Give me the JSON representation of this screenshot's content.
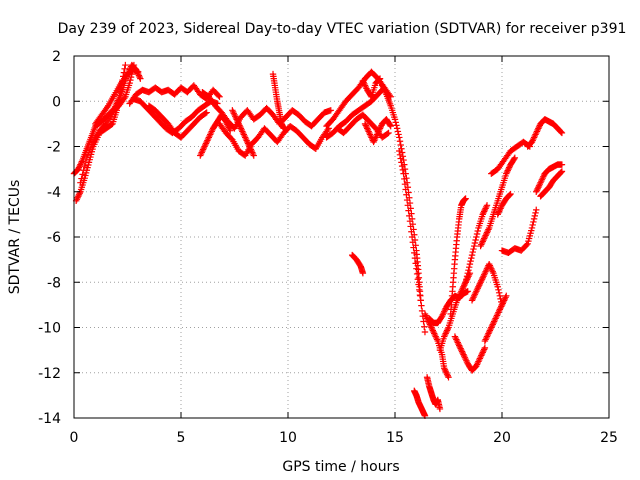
{
  "chart_data": {
    "type": "scatter",
    "title": "Day 239 of 2023, Sidereal Day-to-day VTEC variation (SDTVAR) for receiver p391",
    "xlabel": "GPS time / hours",
    "ylabel": "SDTVAR / TECUs",
    "xlim": [
      0,
      25
    ],
    "ylim": [
      -14,
      2
    ],
    "xticks": [
      0,
      5,
      10,
      15,
      20,
      25
    ],
    "yticks": [
      2,
      0,
      -2,
      -4,
      -6,
      -8,
      -10,
      -12,
      -14
    ],
    "grid": true,
    "marker": "plus",
    "color": "#ff0000",
    "series": [
      {
        "x": [
          0.0,
          0.2,
          0.4,
          0.6,
          0.8,
          1.0,
          1.3,
          1.6,
          1.9,
          2.1,
          2.3,
          2.5,
          2.7,
          2.9,
          3.1
        ],
        "y": [
          -3.2,
          -3.0,
          -2.6,
          -2.1,
          -1.6,
          -1.1,
          -0.9,
          -0.6,
          -0.3,
          0.1,
          0.6,
          1.2,
          1.6,
          1.4,
          1.0
        ]
      },
      {
        "x": [
          0.1,
          0.3,
          0.5,
          0.7,
          0.9,
          1.2,
          1.5,
          1.8,
          2.0,
          2.2,
          2.4
        ],
        "y": [
          -4.4,
          -4.0,
          -3.4,
          -2.7,
          -2.0,
          -1.4,
          -1.2,
          -1.0,
          -0.4,
          0.6,
          1.6
        ]
      },
      {
        "x": [
          0.3,
          0.6,
          0.9,
          1.2,
          1.5,
          1.8,
          2.1,
          2.4,
          2.6,
          2.8
        ],
        "y": [
          -3.6,
          -2.5,
          -1.8,
          -1.3,
          -1.0,
          -0.5,
          -0.2,
          0.2,
          0.8,
          1.6
        ]
      },
      {
        "x": [
          1.0,
          1.3,
          1.6,
          1.9,
          2.2,
          2.5,
          2.8,
          3.0
        ],
        "y": [
          -1.0,
          -0.6,
          -0.2,
          0.3,
          0.8,
          1.2,
          1.4,
          1.3
        ]
      },
      {
        "x": [
          2.6,
          2.9,
          3.2,
          3.5,
          3.8,
          4.1,
          4.4,
          4.7,
          5.0,
          5.3,
          5.6,
          5.9,
          6.2,
          6.5,
          6.8
        ],
        "y": [
          -0.1,
          0.3,
          0.5,
          0.4,
          0.6,
          0.4,
          0.5,
          0.3,
          0.6,
          0.4,
          0.7,
          0.3,
          0.1,
          0.5,
          0.2
        ]
      },
      {
        "x": [
          2.8,
          3.1,
          3.4,
          3.7,
          4.0,
          4.3,
          4.6,
          4.9,
          5.2,
          5.5,
          5.8,
          6.1,
          6.4,
          6.7
        ],
        "y": [
          0.1,
          0.0,
          -0.3,
          -0.6,
          -0.9,
          -1.2,
          -1.4,
          -1.2,
          -0.9,
          -0.7,
          -0.4,
          -0.2,
          0.0,
          -0.1
        ]
      },
      {
        "x": [
          3.5,
          3.8,
          4.1,
          4.4,
          4.7,
          5.0,
          5.3,
          5.6,
          5.9,
          6.2
        ],
        "y": [
          -0.2,
          -0.4,
          -0.7,
          -1.0,
          -1.4,
          -1.6,
          -1.3,
          -1.0,
          -0.7,
          -0.5
        ]
      },
      {
        "x": [
          5.9,
          6.1,
          6.3,
          6.5,
          6.7,
          6.9,
          7.1,
          7.3
        ],
        "y": [
          -2.4,
          -2.0,
          -1.6,
          -1.2,
          -0.9,
          -0.6,
          -0.9,
          -1.3
        ]
      },
      {
        "x": [
          6.0,
          6.3,
          6.6,
          6.9,
          7.2,
          7.5,
          7.8,
          8.1,
          8.4,
          8.7,
          9.0,
          9.3,
          9.6,
          9.9,
          10.2,
          10.5,
          10.8,
          11.1,
          11.4,
          11.7,
          12.0
        ],
        "y": [
          0.4,
          0.2,
          -0.2,
          -0.5,
          -0.9,
          -1.2,
          -0.7,
          -0.4,
          -0.8,
          -0.6,
          -0.3,
          -0.6,
          -1.0,
          -0.7,
          -0.4,
          -0.6,
          -0.9,
          -1.1,
          -0.8,
          -0.5,
          -0.4
        ]
      },
      {
        "x": [
          6.8,
          7.1,
          7.4,
          7.7,
          8.0,
          8.3,
          8.6,
          8.9,
          9.2,
          9.5,
          9.8,
          10.1,
          10.4,
          10.7,
          11.0,
          11.3,
          11.6,
          11.9
        ],
        "y": [
          -1.0,
          -1.4,
          -1.7,
          -2.2,
          -2.4,
          -1.9,
          -1.6,
          -1.2,
          -1.5,
          -1.8,
          -1.4,
          -1.1,
          -1.3,
          -1.6,
          -1.9,
          -2.1,
          -1.6,
          -1.2
        ]
      },
      {
        "x": [
          7.4,
          7.6,
          7.8,
          8.0,
          8.2,
          8.4
        ],
        "y": [
          -0.4,
          -0.8,
          -1.2,
          -1.6,
          -2.0,
          -2.4
        ]
      },
      {
        "x": [
          9.3,
          9.4,
          9.5,
          9.6,
          9.7,
          9.8
        ],
        "y": [
          1.2,
          0.6,
          0.0,
          -0.5,
          -1.0,
          -1.2
        ]
      },
      {
        "x": [
          11.8,
          12.1,
          12.4,
          12.7,
          13.0,
          13.3,
          13.6,
          13.9,
          14.2,
          14.5,
          14.8
        ],
        "y": [
          -1.1,
          -0.8,
          -0.4,
          0.0,
          0.3,
          0.6,
          1.0,
          1.3,
          1.0,
          0.6,
          0.2
        ]
      },
      {
        "x": [
          11.8,
          12.1,
          12.4,
          12.7,
          13.0,
          13.3,
          13.6,
          13.9,
          14.2,
          14.5
        ],
        "y": [
          -1.6,
          -1.4,
          -1.1,
          -0.9,
          -0.6,
          -0.4,
          -0.2,
          0.0,
          0.3,
          0.6
        ]
      },
      {
        "x": [
          12.3,
          12.6,
          12.9,
          13.2,
          13.5,
          13.8,
          14.1,
          14.4,
          14.7
        ],
        "y": [
          -1.2,
          -1.4,
          -1.1,
          -0.8,
          -0.6,
          -0.9,
          -1.2,
          -1.6,
          -1.4
        ]
      },
      {
        "x": [
          13.5,
          13.7,
          13.9,
          14.1,
          14.3
        ],
        "y": [
          0.9,
          0.5,
          0.2,
          0.8,
          1.0
        ]
      },
      {
        "x": [
          13.6,
          13.8,
          14.0,
          14.2,
          14.4,
          14.6,
          14.8
        ],
        "y": [
          -1.0,
          -1.4,
          -1.8,
          -1.4,
          -1.0,
          -0.8,
          -1.1
        ]
      },
      {
        "x": [
          13.0,
          13.2,
          13.4,
          13.5
        ],
        "y": [
          -6.8,
          -7.0,
          -7.3,
          -7.6
        ]
      },
      {
        "x": [
          14.4,
          14.6,
          14.8,
          15.0,
          15.2,
          15.4,
          15.6,
          15.8,
          16.0,
          16.1,
          16.2
        ],
        "y": [
          0.7,
          0.3,
          -0.2,
          -0.8,
          -1.6,
          -2.6,
          -3.8,
          -5.2,
          -6.6,
          -7.6,
          -8.8
        ]
      },
      {
        "x": [
          15.2,
          15.4,
          15.6,
          15.8,
          16.0,
          16.2,
          16.4
        ],
        "y": [
          -2.2,
          -3.2,
          -4.6,
          -6.0,
          -7.4,
          -8.8,
          -10.2
        ]
      },
      {
        "x": [
          15.9,
          16.0,
          16.1,
          16.2,
          16.3,
          16.4
        ],
        "y": [
          -12.8,
          -13.0,
          -13.3,
          -13.5,
          -13.7,
          -13.9
        ]
      },
      {
        "x": [
          16.4,
          16.6,
          16.8,
          17.0,
          17.2,
          17.3,
          17.5
        ],
        "y": [
          -9.4,
          -9.8,
          -10.2,
          -10.6,
          -11.2,
          -11.8,
          -12.2
        ]
      },
      {
        "x": [
          16.5,
          16.6,
          16.7,
          16.8,
          16.9,
          17.0,
          17.1
        ],
        "y": [
          -12.2,
          -12.6,
          -12.9,
          -13.2,
          -13.4,
          -13.2,
          -13.6
        ]
      },
      {
        "x": [
          16.6,
          16.8,
          17.0,
          17.2,
          17.4,
          17.6,
          17.8,
          18.0,
          18.2,
          18.4
        ],
        "y": [
          -9.6,
          -9.8,
          -9.8,
          -9.5,
          -9.1,
          -8.8,
          -8.6,
          -8.7,
          -8.5,
          -8.4
        ]
      },
      {
        "x": [
          17.1,
          17.3,
          17.5,
          17.7,
          17.9,
          18.1,
          18.3,
          18.5
        ],
        "y": [
          -11.0,
          -10.4,
          -10.0,
          -9.4,
          -8.8,
          -8.4,
          -8.0,
          -7.6
        ]
      },
      {
        "x": [
          17.6,
          17.7,
          17.8,
          17.9,
          18.0,
          18.1,
          18.2,
          18.3
        ],
        "y": [
          -9.4,
          -8.2,
          -7.0,
          -6.0,
          -5.2,
          -4.6,
          -4.4,
          -4.3
        ]
      },
      {
        "x": [
          17.8,
          18.0,
          18.2,
          18.4,
          18.6,
          18.8,
          19.0,
          19.2
        ],
        "y": [
          -10.4,
          -10.8,
          -11.2,
          -11.6,
          -11.9,
          -11.7,
          -11.3,
          -10.9
        ]
      },
      {
        "x": [
          18.3,
          18.5,
          18.7,
          18.9,
          19.1,
          19.3
        ],
        "y": [
          -8.0,
          -7.2,
          -6.4,
          -5.6,
          -5.0,
          -4.6
        ]
      },
      {
        "x": [
          18.6,
          18.8,
          19.0,
          19.2,
          19.4,
          19.6,
          19.8,
          20.0
        ],
        "y": [
          -8.8,
          -8.4,
          -8.0,
          -7.6,
          -7.2,
          -7.6,
          -8.2,
          -9.0
        ]
      },
      {
        "x": [
          19.2,
          19.4,
          19.6,
          19.8,
          20.0,
          20.2
        ],
        "y": [
          -10.6,
          -10.2,
          -9.8,
          -9.4,
          -9.0,
          -8.6
        ]
      },
      {
        "x": [
          19.0,
          19.2,
          19.4,
          19.6,
          19.8,
          20.0,
          20.2,
          20.4,
          20.6
        ],
        "y": [
          -6.4,
          -6.0,
          -5.6,
          -5.0,
          -4.4,
          -3.8,
          -3.2,
          -2.8,
          -2.5
        ]
      },
      {
        "x": [
          19.5,
          19.8,
          20.1,
          20.4,
          20.7,
          21.0,
          21.3
        ],
        "y": [
          -3.2,
          -3.0,
          -2.6,
          -2.2,
          -2.0,
          -1.8,
          -2.0
        ]
      },
      {
        "x": [
          19.8,
          20.0,
          20.2,
          20.4
        ],
        "y": [
          -5.0,
          -4.6,
          -4.3,
          -4.1
        ]
      },
      {
        "x": [
          20.0,
          20.3,
          20.6,
          20.9,
          21.2,
          21.4,
          21.6
        ],
        "y": [
          -6.6,
          -6.7,
          -6.5,
          -6.6,
          -6.3,
          -5.6,
          -4.8
        ]
      },
      {
        "x": [
          21.2,
          21.4,
          21.6,
          21.8,
          22.0,
          22.2,
          22.4,
          22.6,
          22.8
        ],
        "y": [
          -2.0,
          -1.8,
          -1.4,
          -1.0,
          -0.8,
          -0.9,
          -1.0,
          -1.2,
          -1.4
        ]
      },
      {
        "x": [
          21.6,
          21.8,
          22.0,
          22.2,
          22.4,
          22.6,
          22.8
        ],
        "y": [
          -4.0,
          -3.6,
          -3.2,
          -3.0,
          -2.9,
          -2.8,
          -2.8
        ]
      },
      {
        "x": [
          21.8,
          22.0,
          22.2,
          22.4,
          22.6,
          22.8
        ],
        "y": [
          -4.2,
          -4.0,
          -3.8,
          -3.5,
          -3.3,
          -3.1
        ]
      }
    ]
  }
}
